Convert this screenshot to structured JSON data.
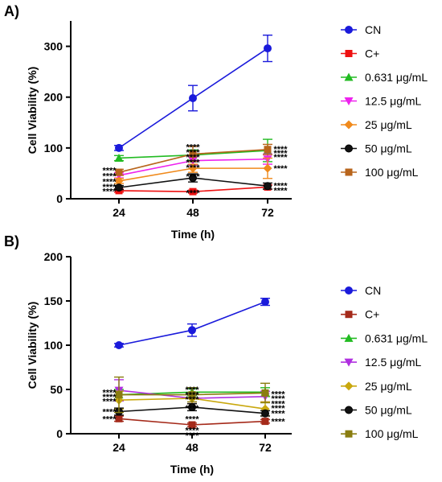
{
  "chart_data": [
    {
      "panel_label": "A)",
      "type": "line",
      "xlabel": "Time (h)",
      "ylabel": "Cell Viability (%)",
      "x": [
        24,
        48,
        72
      ],
      "x_tick_labels": [
        "24",
        "48",
        "72"
      ],
      "ylim": [
        0,
        350
      ],
      "y_ticks": [
        0,
        100,
        200,
        300
      ],
      "y_tick_labels": [
        "0",
        "100",
        "200",
        "300"
      ],
      "grid": false,
      "legend": "right",
      "series": [
        {
          "name": "CN",
          "color": "#1a1adb",
          "marker": "circle",
          "values": [
            100,
            198,
            296
          ],
          "errors": [
            5,
            25,
            26
          ]
        },
        {
          "name": "C+",
          "color": "#ee1111",
          "marker": "square",
          "values": [
            16,
            14,
            23
          ],
          "errors": [
            3,
            3,
            4
          ]
        },
        {
          "name": "0.631 μg/mL",
          "color": "#22bb22",
          "marker": "triangle-up",
          "values": [
            80,
            86,
            95
          ],
          "errors": [
            5,
            10,
            22
          ]
        },
        {
          "name": "12.5 μg/mL",
          "color": "#ee22ee",
          "marker": "triangle-down",
          "values": [
            46,
            75,
            78
          ],
          "errors": [
            5,
            8,
            10
          ]
        },
        {
          "name": "25 μg/mL",
          "color": "#f08a1c",
          "marker": "diamond",
          "values": [
            35,
            60,
            60
          ],
          "errors": [
            5,
            8,
            20
          ]
        },
        {
          "name": "50 μg/mL",
          "color": "#111111",
          "marker": "circle-filled",
          "values": [
            22,
            41,
            25
          ],
          "errors": [
            4,
            8,
            6
          ]
        },
        {
          "name": "100 μg/mL",
          "color": "#b8651c",
          "marker": "square-brown",
          "values": [
            52,
            88,
            97
          ],
          "errors": [
            6,
            15,
            10
          ]
        }
      ],
      "annotations": [
        {
          "text": "****",
          "x": 24,
          "y": 56
        },
        {
          "text": "****",
          "x": 24,
          "y": 45
        },
        {
          "text": "****",
          "x": 24,
          "y": 34
        },
        {
          "text": "****",
          "x": 24,
          "y": 24
        },
        {
          "text": "****",
          "x": 24,
          "y": 15
        },
        {
          "text": "****",
          "x": 48,
          "y": 102
        },
        {
          "text": "****",
          "x": 48,
          "y": 92
        },
        {
          "text": "****",
          "x": 48,
          "y": 82
        },
        {
          "text": "****",
          "x": 48,
          "y": 72
        },
        {
          "text": "****",
          "x": 48,
          "y": 62
        },
        {
          "text": "****",
          "x": 48,
          "y": 44
        },
        {
          "text": "****",
          "x": 48,
          "y": 12
        },
        {
          "text": "****",
          "x": 72,
          "y": 98
        },
        {
          "text": "****",
          "x": 72,
          "y": 90
        },
        {
          "text": "****",
          "x": 72,
          "y": 82
        },
        {
          "text": "****",
          "x": 72,
          "y": 60
        },
        {
          "text": "****",
          "x": 72,
          "y": 26
        },
        {
          "text": "****",
          "x": 72,
          "y": 17
        }
      ]
    },
    {
      "panel_label": "B)",
      "type": "line",
      "xlabel": "Time (h)",
      "ylabel": "Cell Viability (%)",
      "x": [
        24,
        48,
        72
      ],
      "x_tick_labels": [
        "24",
        "48",
        "72"
      ],
      "ylim": [
        0,
        200
      ],
      "y_ticks": [
        0,
        50,
        100,
        150,
        200
      ],
      "y_tick_labels": [
        "0",
        "50",
        "100",
        "150",
        "200"
      ],
      "grid": false,
      "legend": "right",
      "series": [
        {
          "name": "CN",
          "color": "#1a1adb",
          "marker": "circle",
          "values": [
            100,
            117,
            149
          ],
          "errors": [
            2,
            7,
            4
          ]
        },
        {
          "name": "C+",
          "color": "#a52a1a",
          "marker": "square",
          "values": [
            17,
            10,
            14
          ],
          "errors": [
            3,
            2,
            2
          ]
        },
        {
          "name": "0.631 μg/mL",
          "color": "#22bb22",
          "marker": "triangle-up",
          "values": [
            44,
            47,
            47
          ],
          "errors": [
            6,
            4,
            5
          ]
        },
        {
          "name": "12.5 μg/mL",
          "color": "#b030e0",
          "marker": "triangle-down",
          "values": [
            49,
            40,
            42
          ],
          "errors": [
            12,
            6,
            6
          ]
        },
        {
          "name": "25 μg/mL",
          "color": "#c9a80e",
          "marker": "diamond",
          "values": [
            38,
            40,
            28
          ],
          "errors": [
            10,
            6,
            8
          ]
        },
        {
          "name": "50 μg/mL",
          "color": "#111111",
          "marker": "circle-filled",
          "values": [
            25,
            30,
            23
          ],
          "errors": [
            4,
            4,
            3
          ]
        },
        {
          "name": "100 μg/mL",
          "color": "#8a7d10",
          "marker": "square-olive",
          "values": [
            44,
            44,
            46
          ],
          "errors": [
            20,
            8,
            11
          ]
        }
      ],
      "annotations": [
        {
          "text": "****",
          "x": 24,
          "y": 47
        },
        {
          "text": "****",
          "x": 24,
          "y": 42
        },
        {
          "text": "****",
          "x": 24,
          "y": 37
        },
        {
          "text": "****",
          "x": 24,
          "y": 25
        },
        {
          "text": "****",
          "x": 24,
          "y": 17
        },
        {
          "text": "****",
          "x": 48,
          "y": 50
        },
        {
          "text": "****",
          "x": 48,
          "y": 44
        },
        {
          "text": "****",
          "x": 48,
          "y": 39
        },
        {
          "text": "****",
          "x": 48,
          "y": 29
        },
        {
          "text": "****",
          "x": 48,
          "y": 17
        },
        {
          "text": "****",
          "x": 48,
          "y": 4
        },
        {
          "text": "****",
          "x": 48,
          "y": -2
        },
        {
          "text": "****",
          "x": 72,
          "y": 45
        },
        {
          "text": "****",
          "x": 72,
          "y": 40
        },
        {
          "text": "****",
          "x": 72,
          "y": 34
        },
        {
          "text": "****",
          "x": 72,
          "y": 29
        },
        {
          "text": "****",
          "x": 72,
          "y": 23
        },
        {
          "text": "****",
          "x": 72,
          "y": 14
        }
      ]
    }
  ]
}
